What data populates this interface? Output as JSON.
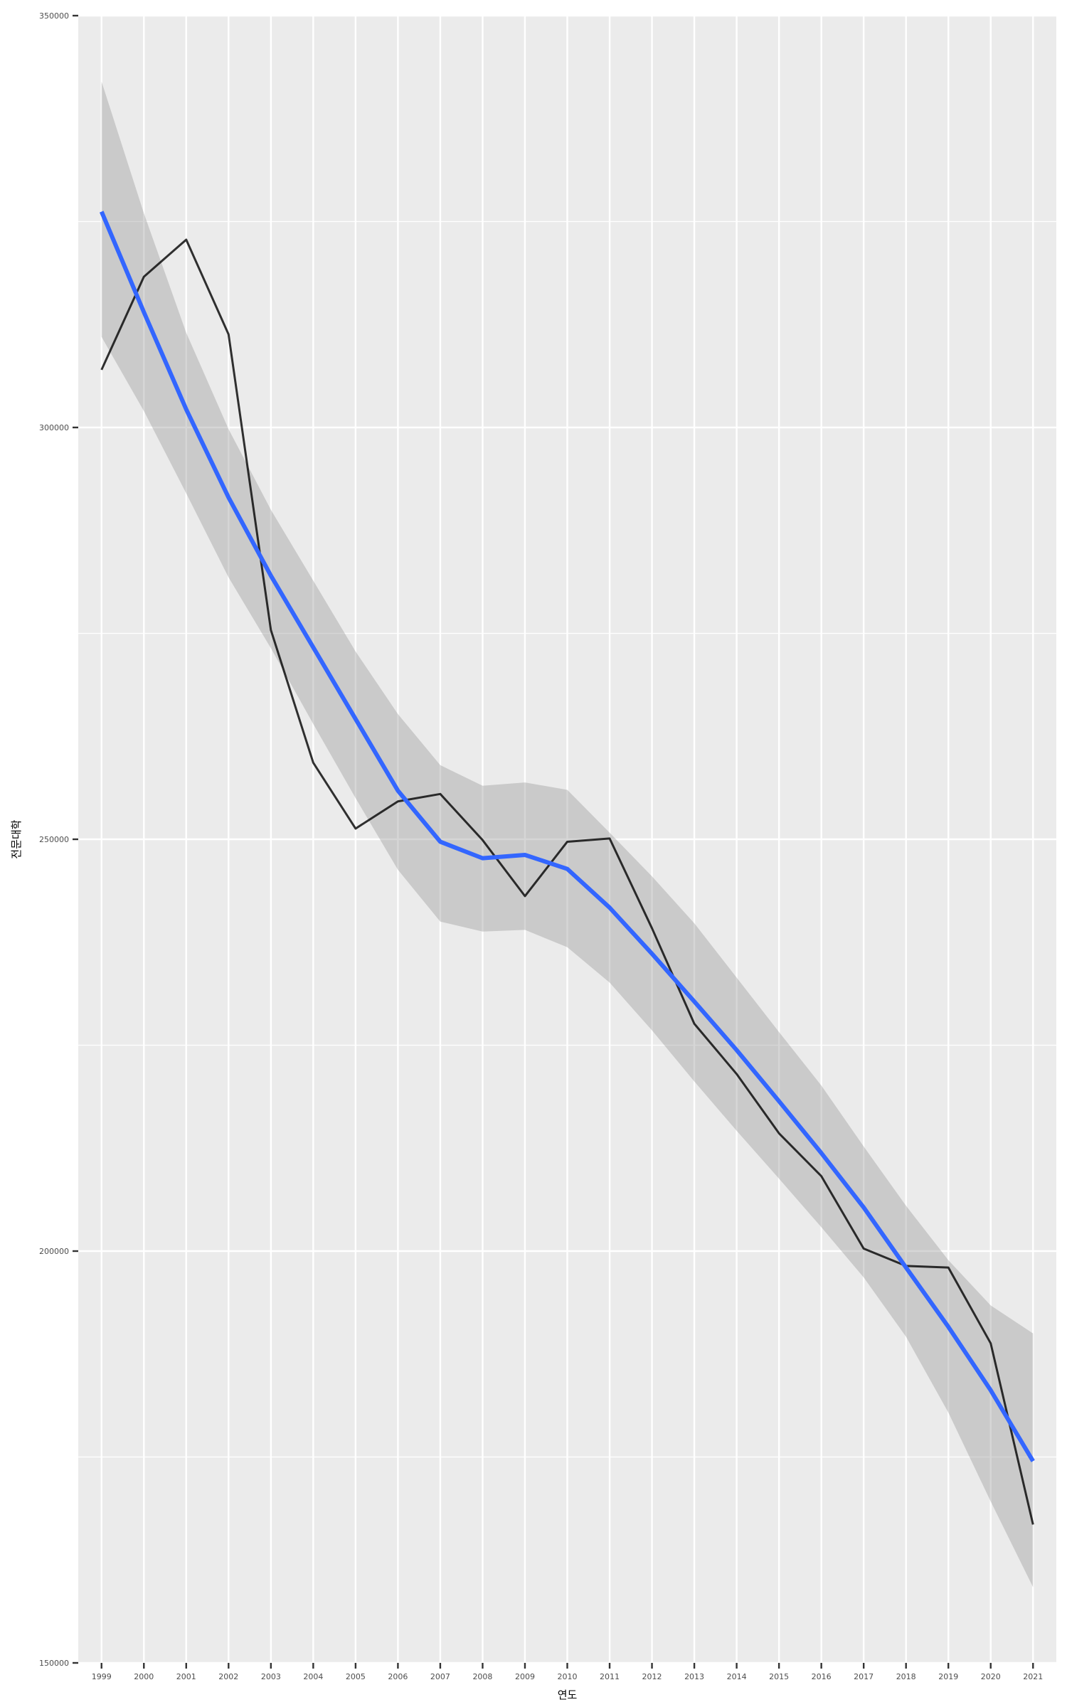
{
  "chart_data": {
    "type": "line",
    "title": "",
    "xlabel": "연도",
    "ylabel": "전문대학",
    "x": [
      1999,
      2000,
      2001,
      2002,
      2003,
      2004,
      2005,
      2006,
      2007,
      2008,
      2009,
      2010,
      2011,
      2012,
      2013,
      2014,
      2015,
      2016,
      2017,
      2018,
      2019,
      2020,
      2021
    ],
    "xlim": [
      1998.45,
      2021.55
    ],
    "ylim": [
      150000,
      350000
    ],
    "y_ticks": [
      150000,
      200000,
      250000,
      300000,
      350000
    ],
    "y_tick_labels": [
      "150000",
      "200000",
      "250000",
      "300000",
      "350000"
    ],
    "x_tick_labels": [
      "1999",
      "2000",
      "2001",
      "2002",
      "2003",
      "2004",
      "2005",
      "2006",
      "2007",
      "2008",
      "2009",
      "2010",
      "2011",
      "2012",
      "2013",
      "2014",
      "2015",
      "2016",
      "2017",
      "2018",
      "2019",
      "2020",
      "2021"
    ],
    "grid": true,
    "legend": "none",
    "series": [
      {
        "type": "line",
        "color": "#000000",
        "values": [
          307000,
          318300,
          322800,
          311300,
          275400,
          259300,
          251300,
          254600,
          255500,
          249900,
          243100,
          249700,
          250100,
          239200,
          227600,
          221500,
          214300,
          209100,
          200300,
          198200,
          198000,
          188800,
          166800
        ]
      },
      {
        "type": "smooth",
        "color": "#3366ff",
        "values": [
          326200,
          314000,
          302200,
          291500,
          282000,
          273300,
          264600,
          255900,
          249700,
          247700,
          248100,
          246400,
          241700,
          236100,
          230300,
          224400,
          218200,
          211900,
          205300,
          198000,
          190800,
          183100,
          174500
        ],
        "ci_lower": [
          311000,
          302000,
          292000,
          281800,
          273200,
          264000,
          255000,
          246300,
          240000,
          238800,
          239000,
          236900,
          232600,
          226800,
          220600,
          214600,
          208800,
          202900,
          196800,
          189600,
          180400,
          169600,
          159200
        ],
        "ci_upper": [
          342000,
          326000,
          311500,
          299800,
          290000,
          281400,
          272800,
          265200,
          259000,
          256500,
          256900,
          256000,
          250800,
          245500,
          239800,
          233200,
          226600,
          220100,
          212700,
          205500,
          198900,
          193400,
          190000
        ],
        "ci_color": "#999999"
      }
    ]
  }
}
